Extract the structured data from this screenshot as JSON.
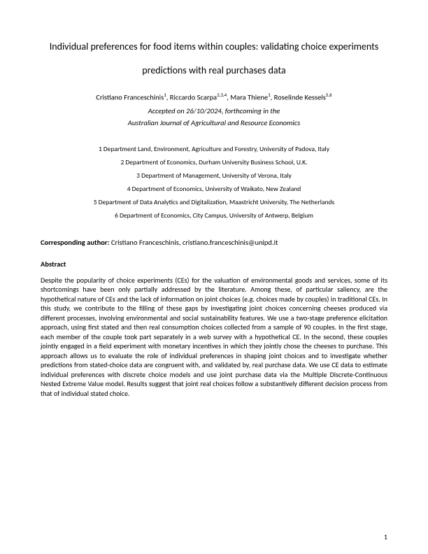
{
  "title_line1": "Individual preferences for food items within couples: validating choice experiments",
  "title_line2": "predictions with real purchases data",
  "author1_name": "Cristiano Franceschinis",
  "author1_sup": "1",
  "author2_name": "Riccardo Scarpa",
  "author2_sup": "2,3,4",
  "author3_name": "Mara Thiene",
  "author3_sup": "1",
  "author4_name": "Roselinde Kessels",
  "author4_sup": "5,6",
  "accepted_line": "Accepted on 26/10/2024, forthcoming in the",
  "journal_line": "Australian Journal of Agricultural and Resource Economics",
  "affil1": "1 Department Land, Environment, Agriculture and Forestry, University of Padova, Italy",
  "affil2": "2 Department of Economics, Durham University Business School, U.K.",
  "affil3": "3 Department of Management, University of Verona, Italy",
  "affil4": "4 Department of Economics, University of Waikato, New Zealand",
  "affil5": "5 Department of Data Analytics and Digitalization, Maastricht University, The Netherlands",
  "affil6": "6 Department of Economics, City Campus, University of Antwerp, Belgium",
  "corresponding_label": "Corresponding author:",
  "corresponding_value": " Cristiano Franceschinis, cristiano.franceschinis@unipd.it",
  "abstract_heading": "Abstract",
  "abstract_body": "Despite the popularity of choice experiments (CEs) for the valuation of environmental goods and services, some of its shortcomings have been only partially addressed by the literature. Among these, of particular saliency, are the hypothetical nature of CEs and the lack of information on joint choices (e.g. choices made by couples) in traditional CEs. In this study, we contribute to the filling of these gaps by investigating joint choices concerning cheeses produced via different processes, involving environmental and social sustainability features. We use a two-stage preference elicitation approach, using first stated and then real consumption choices collected from a sample of 90 couples. In the first stage, each member of the couple took part separately in a web survey with a hypothetical CE. In the second, these couples jointly engaged in a field experiment with monetary incentives in which they jointly chose the cheeses to purchase. This approach allows us to evaluate the role of individual preferences in shaping joint choices and to investigate whether predictions from stated-choice data are congruent with, and validated by, real purchase data. We use CE data to estimate individual preferences with discrete choice models and use joint purchase data via the Multiple Discrete-Continuous Nested Extreme Value model. Results suggest that joint real choices follow a substantively different decision process from that of individual stated choice.",
  "page_number": "1"
}
